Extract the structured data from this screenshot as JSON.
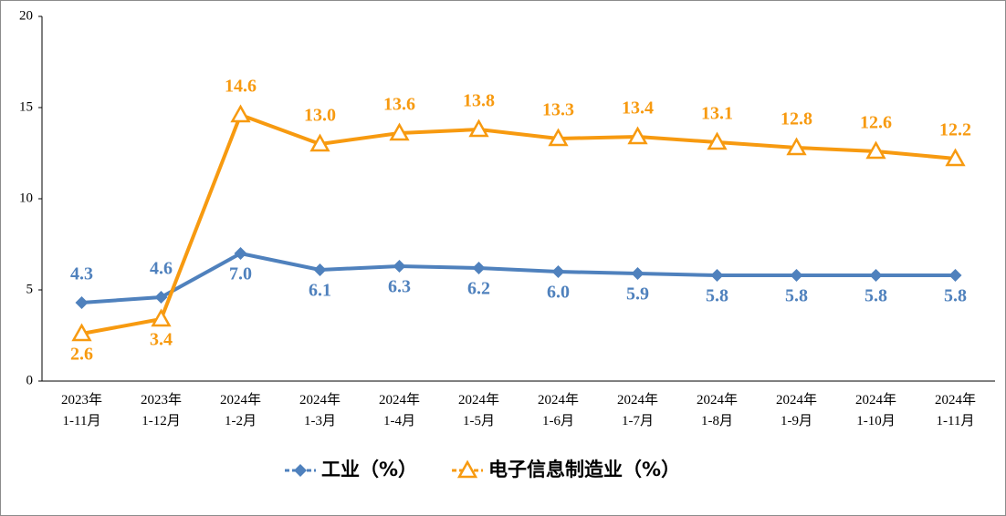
{
  "chart_data": {
    "type": "line",
    "categories": [
      [
        "2023年",
        "1-11月"
      ],
      [
        "2023年",
        "1-12月"
      ],
      [
        "2024年",
        "1-2月"
      ],
      [
        "2024年",
        "1-3月"
      ],
      [
        "2024年",
        "1-4月"
      ],
      [
        "2024年",
        "1-5月"
      ],
      [
        "2024年",
        "1-6月"
      ],
      [
        "2024年",
        "1-7月"
      ],
      [
        "2024年",
        "1-8月"
      ],
      [
        "2024年",
        "1-9月"
      ],
      [
        "2024年",
        "1-10月"
      ],
      [
        "2024年",
        "1-11月"
      ]
    ],
    "series": [
      {
        "name": "工业（%）",
        "color": "#4f81bd",
        "marker": "diamond",
        "values": [
          4.3,
          4.6,
          7,
          6.1,
          6.3,
          6.2,
          6,
          5.9,
          5.8,
          5.8,
          5.8,
          5.8
        ],
        "value_labels": [
          "4.3",
          "4.6",
          "7.0",
          "6.1",
          "6.3",
          "6.2",
          "6.0",
          "5.9",
          "5.8",
          "5.8",
          "5.8",
          "5.8"
        ]
      },
      {
        "name": "电子信息制造业（%）",
        "color": "#f79a10",
        "marker": "triangle",
        "values": [
          2.6,
          3.4,
          14.6,
          13,
          13.6,
          13.8,
          13.3,
          13.4,
          13.1,
          12.8,
          12.6,
          12.2
        ],
        "value_labels": [
          "2.6",
          "3.4",
          "14.6",
          "13.0",
          "13.6",
          "13.8",
          "13.3",
          "13.4",
          "13.1",
          "12.8",
          "12.6",
          "12.2"
        ]
      }
    ],
    "ylim": [
      0,
      20
    ],
    "yticks": [
      0,
      5,
      10,
      15,
      20
    ],
    "grid": false,
    "legend": "bottom"
  }
}
